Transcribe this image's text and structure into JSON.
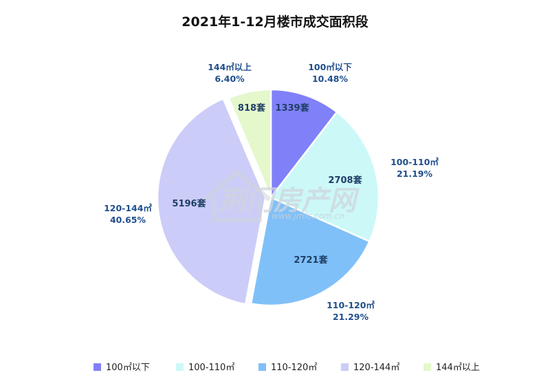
{
  "chart_data": {
    "type": "pie",
    "title": "2021年1-12月楼市成交面积段",
    "unit": "套",
    "slices": [
      {
        "name": "100㎡以下",
        "value": 1339,
        "count_label": "1339套",
        "percent_label": "10.48%",
        "color": "#8080f8"
      },
      {
        "name": "100-110㎡",
        "value": 2708,
        "count_label": "2708套",
        "percent_label": "21.19%",
        "color": "#ccf8f8"
      },
      {
        "name": "110-120㎡",
        "value": 2721,
        "count_label": "2721套",
        "percent_label": "21.29%",
        "color": "#80c0f8"
      },
      {
        "name": "120-144㎡",
        "value": 5196,
        "count_label": "5196套",
        "percent_label": "40.65%",
        "color": "#ccccf8"
      },
      {
        "name": "144㎡以上",
        "value": 818,
        "count_label": "818套",
        "percent_label": "6.40%",
        "color": "#e4f8cc"
      }
    ],
    "legend_position": "bottom"
  },
  "watermark": {
    "text": "荆门房产网",
    "url": "www.jmfc.com.cn"
  }
}
